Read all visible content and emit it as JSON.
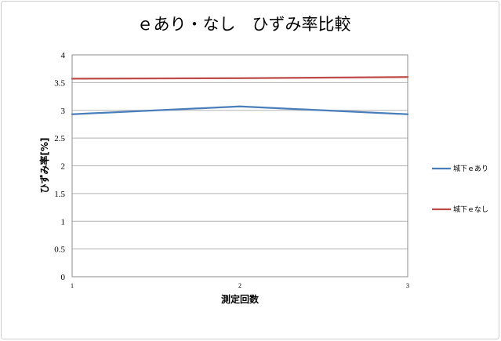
{
  "chart_data": {
    "type": "line",
    "title": "ｅあり・なし　ひずみ率比較",
    "xlabel": "測定回数",
    "ylabel": "ひずみ率[%]",
    "x": [
      1,
      2,
      3
    ],
    "ylim": [
      0,
      4
    ],
    "yticks": [
      0,
      0.5,
      1,
      1.5,
      2,
      2.5,
      3,
      3.5,
      4
    ],
    "grid": true,
    "legend": "right",
    "series": [
      {
        "name": "城下ｅあり",
        "values": [
          2.93,
          3.07,
          2.93
        ],
        "color": "#4a7ebb"
      },
      {
        "name": "城下ｅなし",
        "values": [
          3.57,
          3.58,
          3.6
        ],
        "color": "#be4b48"
      }
    ]
  }
}
